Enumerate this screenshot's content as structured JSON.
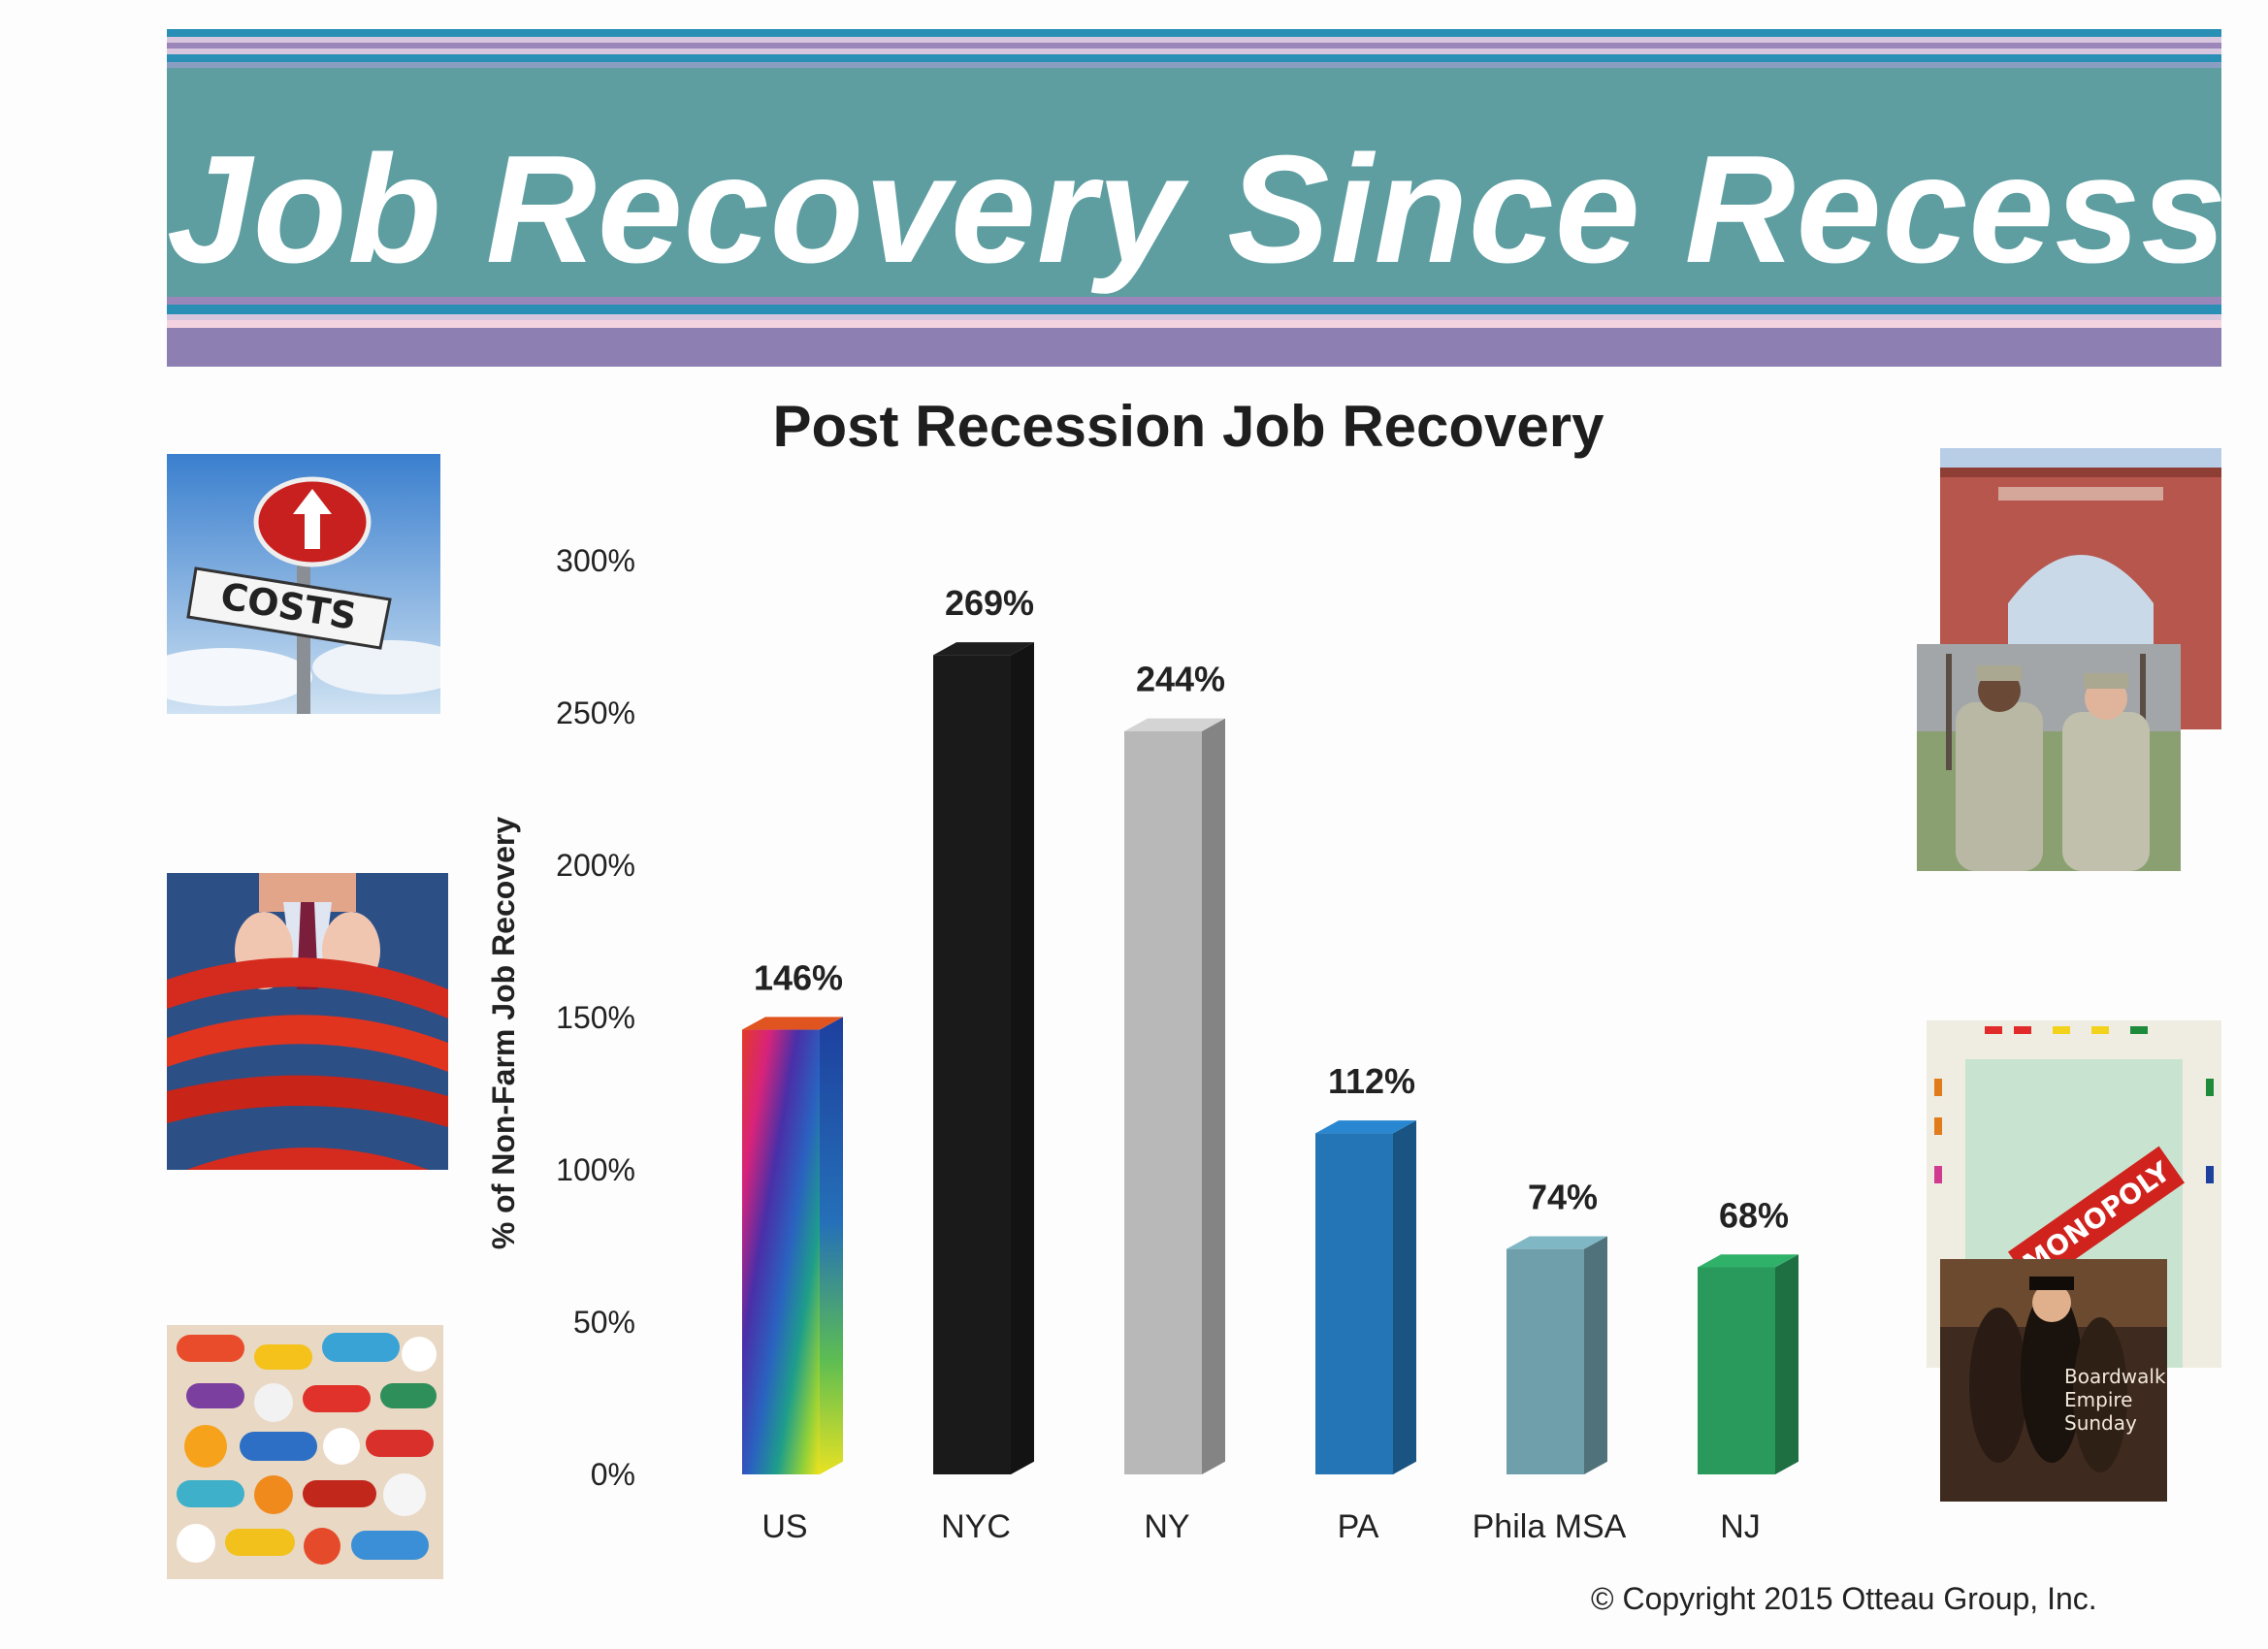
{
  "banner": {
    "title": "Job Recovery Since Recession"
  },
  "chart_data": {
    "type": "bar",
    "title": "Post Recession Job Recovery",
    "ylabel": "% of Non-Farm Job Recovery",
    "xlabel": "",
    "ylim": [
      0,
      300
    ],
    "yticks": [
      "0%",
      "50%",
      "100%",
      "150%",
      "200%",
      "250%",
      "300%"
    ],
    "categories": [
      "US",
      "NYC",
      "NY",
      "PA",
      "Phila MSA",
      "NJ"
    ],
    "values": [
      146,
      269,
      244,
      112,
      74,
      68
    ],
    "data_labels": [
      "146%",
      "269%",
      "244%",
      "112%",
      "74%",
      "68%"
    ],
    "colors": [
      "rainbow",
      "#1a1a1a",
      "#b8b8b8",
      "#2375b5",
      "#6f9fab",
      "#2a9a5c"
    ],
    "grid": false,
    "legend": "none"
  },
  "footer": {
    "copyright": "© Copyright 2015 Otteau Group, Inc."
  },
  "photos": [
    {
      "name": "costs-sign-photo",
      "text": "COSTS"
    },
    {
      "name": "red-tape-businessman-photo"
    },
    {
      "name": "pills-photo"
    },
    {
      "name": "brick-arch-gate-photo"
    },
    {
      "name": "soldiers-photo"
    },
    {
      "name": "monopoly-board-photo",
      "text": "MONOPOLY"
    },
    {
      "name": "boardwalk-empire-poster-photo",
      "text": "Boardwalk Empire Sunday"
    }
  ]
}
